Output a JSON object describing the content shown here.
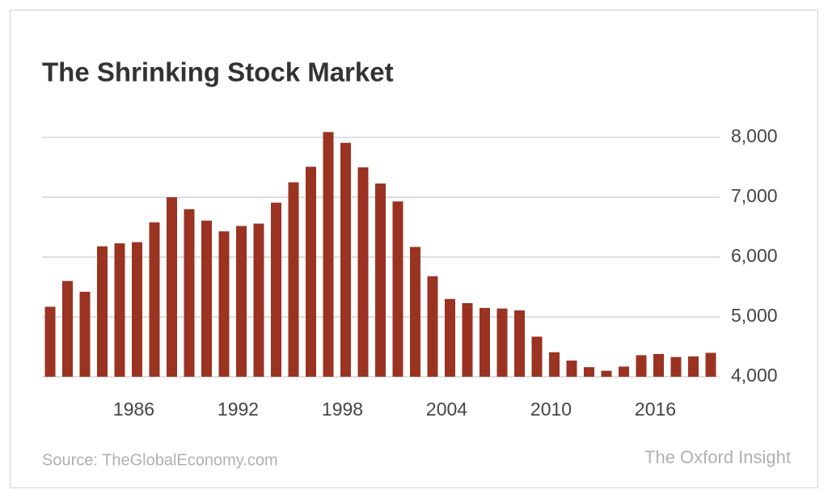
{
  "chart_data": {
    "type": "bar",
    "title": "The Shrinking Stock Market",
    "source": "Source: TheGlobalEconomy.com",
    "credit": "The Oxford Insight",
    "categories": [
      null,
      null,
      null,
      null,
      null,
      "1986",
      null,
      null,
      null,
      null,
      null,
      "1992",
      null,
      null,
      null,
      null,
      null,
      "1998",
      null,
      null,
      null,
      null,
      null,
      "2004",
      null,
      null,
      null,
      null,
      null,
      "2010",
      null,
      null,
      null,
      null,
      null,
      "2016",
      null,
      null,
      null
    ],
    "values": [
      5170,
      5600,
      5420,
      6180,
      6230,
      6250,
      6580,
      7000,
      6800,
      6610,
      6430,
      6520,
      6560,
      6910,
      7250,
      7510,
      8090,
      7910,
      7500,
      7230,
      6930,
      6170,
      5680,
      5300,
      5230,
      5150,
      5140,
      5110,
      4670,
      4410,
      4270,
      4160,
      4100,
      4170,
      4360,
      4380,
      4330,
      4340,
      4400
    ],
    "color": "#9b3322",
    "ylim": [
      4000,
      8000
    ],
    "yticks": [
      {
        "value": 4000,
        "label": "4,000"
      },
      {
        "value": 5000,
        "label": "5,000"
      },
      {
        "value": 6000,
        "label": "6,000"
      },
      {
        "value": 7000,
        "label": "7,000"
      },
      {
        "value": 8000,
        "label": "8,000"
      }
    ],
    "grid": true
  }
}
